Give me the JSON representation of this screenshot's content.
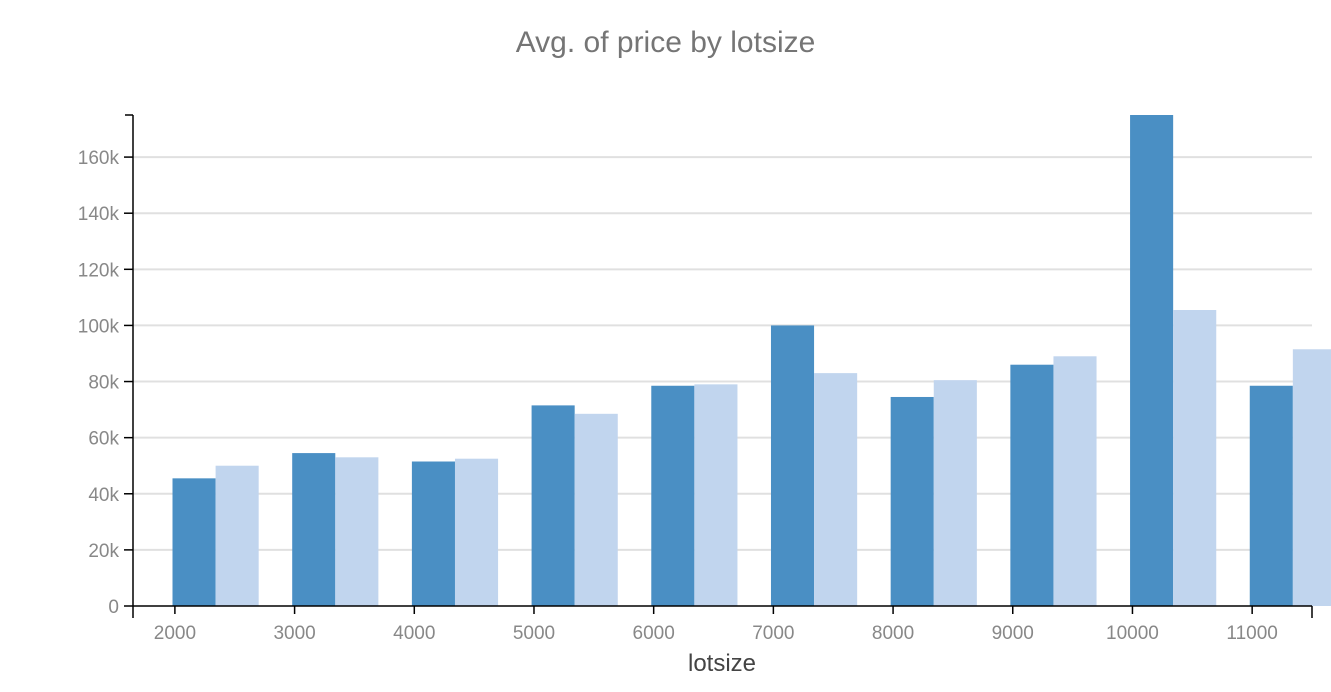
{
  "chart_data": {
    "type": "bar",
    "title": "Avg. of price by lotsize",
    "xlabel": "lotsize",
    "ylabel": "",
    "categories": [
      "2000",
      "3000",
      "4000",
      "5000",
      "6000",
      "7000",
      "8000",
      "9000",
      "10000",
      "11000"
    ],
    "series": [
      {
        "name": "",
        "color": "#4a8fc4",
        "values": [
          45500,
          54500,
          51500,
          71500,
          78500,
          100000,
          74500,
          86000,
          175000,
          78500
        ]
      },
      {
        "name": "",
        "color": "#c1d5ee",
        "values": [
          50000,
          53000,
          52500,
          68500,
          79000,
          83000,
          80500,
          89000,
          105500,
          91500
        ]
      }
    ],
    "yticks": [
      0,
      20000,
      40000,
      60000,
      80000,
      100000,
      120000,
      140000,
      160000
    ],
    "ytick_labels": [
      "0",
      "20k",
      "40k",
      "60k",
      "80k",
      "100k",
      "120k",
      "140k",
      "160k"
    ],
    "ylim": [
      0,
      175000
    ],
    "xlim": [
      1650,
      11500
    ],
    "grid": true,
    "legend": "none"
  }
}
